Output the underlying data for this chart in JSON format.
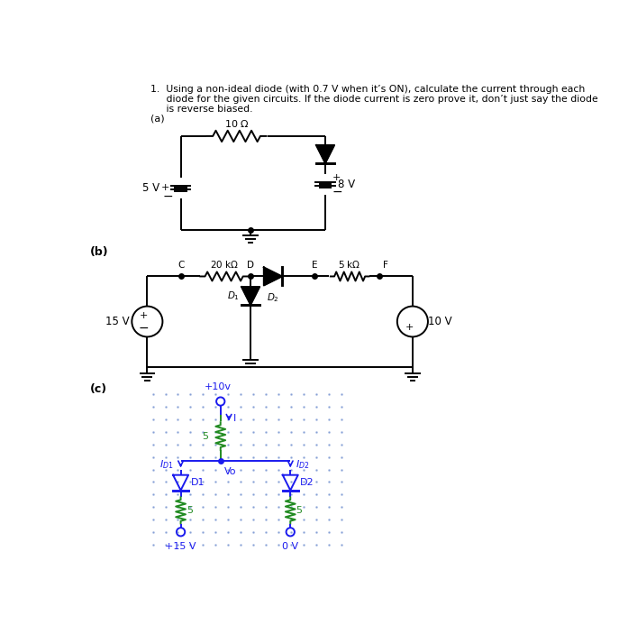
{
  "title_line1": "1.  Using a non-ideal diode (with 0.7 V when it’s ON), calculate the current through each",
  "title_line2": "     diode for the given circuits. If the diode current is zero prove it, don’t just say the diode",
  "title_line3": "     is reverse biased.",
  "label_a": "(a)",
  "label_b": "(b)",
  "label_c": "(c)",
  "bg_color": "#ffffff",
  "text_color": "#000000",
  "blue_color": "#1a1aee",
  "green_color": "#228B22"
}
